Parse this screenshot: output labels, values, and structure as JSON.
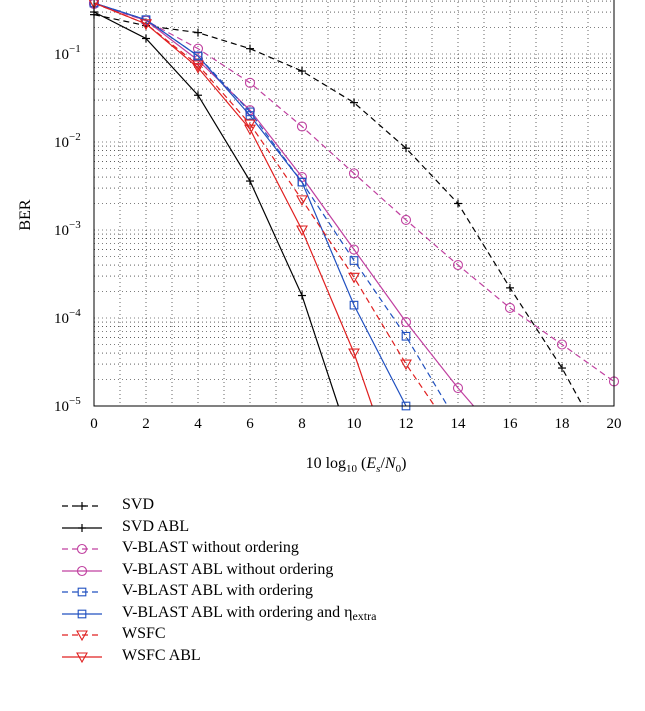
{
  "chart_data": {
    "type": "line",
    "title": "",
    "xlabel_prefix": "10 log",
    "xlabel_sub": "10",
    "xlabel_open": " (",
    "xlabel_E": "E",
    "xlabel_s": "s",
    "xlabel_slash": "/",
    "xlabel_N": "N",
    "xlabel_0": "0",
    "xlabel_close": ")",
    "ylabel": "BER",
    "xlim": [
      0,
      20
    ],
    "ylim": [
      1e-05,
      1
    ],
    "yscale": "log",
    "grid": true,
    "legend_position": "below",
    "xticks": [
      "0",
      "2",
      "4",
      "6",
      "8",
      "10",
      "12",
      "14",
      "16",
      "18",
      "20"
    ],
    "yticks": [
      {
        "base": "10",
        "exp": "−1",
        "value": 0.1
      },
      {
        "base": "10",
        "exp": "−2",
        "value": 0.01
      },
      {
        "base": "10",
        "exp": "−3",
        "value": 0.001
      },
      {
        "base": "10",
        "exp": "−4",
        "value": 0.0001
      },
      {
        "base": "10",
        "exp": "−5",
        "value": 1e-05
      }
    ],
    "series": [
      {
        "name": "SVD",
        "color": "#000000",
        "dash": true,
        "marker": "plus",
        "x": [
          0,
          2,
          4,
          6,
          8,
          10,
          12,
          14,
          16,
          18,
          18.8
        ],
        "y": [
          0.28,
          0.21,
          0.175,
          0.115,
          0.064,
          0.028,
          0.0085,
          0.002,
          0.00022,
          2.7e-05,
          1e-05
        ]
      },
      {
        "name": "SVD ABL",
        "color": "#000000",
        "dash": false,
        "marker": "plus",
        "x": [
          0,
          2,
          4,
          6,
          8,
          9.4
        ],
        "y": [
          0.3,
          0.15,
          0.034,
          0.0036,
          0.00018,
          1e-05
        ]
      },
      {
        "name": "V-BLAST without ordering",
        "color": "#c040a0",
        "dash": true,
        "marker": "circle",
        "x": [
          0,
          2,
          4,
          6,
          8,
          10,
          12,
          14,
          16,
          18,
          20
        ],
        "y": [
          0.37,
          0.24,
          0.115,
          0.047,
          0.015,
          0.0044,
          0.0013,
          0.0004,
          0.00013,
          5e-05,
          1.9e-05
        ]
      },
      {
        "name": "V-BLAST ABL without ordering",
        "color": "#c040a0",
        "dash": false,
        "marker": "circle",
        "x": [
          0,
          2,
          4,
          6,
          8,
          10,
          12,
          14,
          14.6
        ],
        "y": [
          0.38,
          0.24,
          0.085,
          0.023,
          0.004,
          0.0006,
          9e-05,
          1.6e-05,
          1e-05
        ]
      },
      {
        "name": "V-BLAST ABL with ordering",
        "color": "#2050c0",
        "dash": true,
        "marker": "square",
        "x": [
          0,
          2,
          4,
          6,
          8,
          10,
          12,
          13.6
        ],
        "y": [
          0.38,
          0.245,
          0.095,
          0.022,
          0.0035,
          0.00045,
          6.2e-05,
          1e-05
        ]
      },
      {
        "name": "V-BLAST ABL with ordering and η",
        "name_sub": "extra",
        "color": "#2050c0",
        "dash": false,
        "marker": "square",
        "x": [
          0,
          2,
          4,
          6,
          8,
          10,
          12
        ],
        "y": [
          0.38,
          0.245,
          0.095,
          0.02,
          0.0035,
          0.00014,
          1e-05
        ]
      },
      {
        "name": "WSFC",
        "color": "#e02020",
        "dash": true,
        "marker": "triangle",
        "x": [
          0,
          2,
          4,
          6,
          8,
          10,
          12,
          13.1
        ],
        "y": [
          0.38,
          0.22,
          0.075,
          0.016,
          0.0022,
          0.00029,
          3e-05,
          1e-05
        ]
      },
      {
        "name": "WSFC ABL",
        "color": "#e02020",
        "dash": false,
        "marker": "triangle",
        "x": [
          0,
          2,
          4,
          6,
          8,
          10,
          10.7
        ],
        "y": [
          0.38,
          0.22,
          0.07,
          0.014,
          0.001,
          4e-05,
          1e-05
        ]
      }
    ]
  }
}
